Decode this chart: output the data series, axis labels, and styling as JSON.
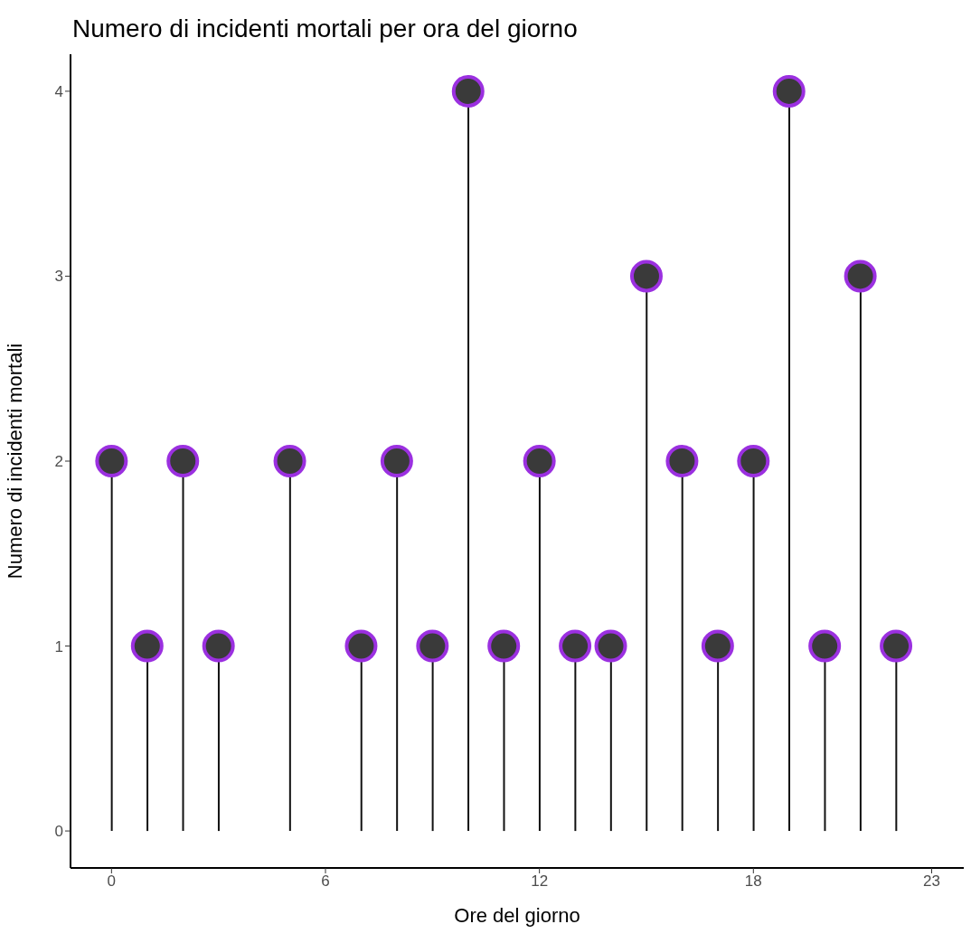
{
  "chart_data": {
    "type": "lollipop",
    "title": "Numero di incidenti mortali per ora del giorno",
    "xlabel": "Ore del giorno",
    "ylabel": "Numero di incidenti mortali",
    "x": [
      0,
      1,
      2,
      3,
      5,
      7,
      8,
      9,
      10,
      11,
      12,
      13,
      14,
      15,
      16,
      17,
      18,
      19,
      20,
      21,
      22
    ],
    "values": [
      2,
      1,
      2,
      1,
      2,
      1,
      2,
      1,
      4,
      1,
      2,
      1,
      1,
      3,
      2,
      1,
      2,
      4,
      1,
      3,
      1
    ],
    "color": "#3a3a3a",
    "marker": "circle",
    "grid": false,
    "legend": false,
    "xlim": [
      -1.15,
      23.9
    ],
    "xticks": [
      0,
      6,
      12,
      18,
      23
    ],
    "ylim": [
      -0.2,
      4.2
    ],
    "yticks": [
      0,
      1,
      2,
      3,
      4
    ]
  }
}
